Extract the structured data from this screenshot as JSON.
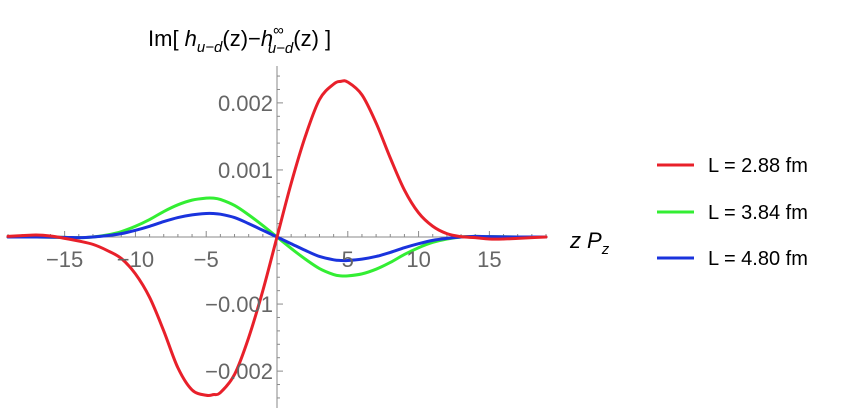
{
  "chart_data": {
    "type": "line",
    "title": {
      "prefix": "Im[ ",
      "h1": "h",
      "sub1": "u−d",
      "mid1": "(z)−",
      "h2": "h",
      "sup2": "∞",
      "sub2": "u−d",
      "mid2": "(z) ]"
    },
    "xlabel": {
      "z": "z",
      "P": "P",
      "sub": "z"
    },
    "xlim": [
      -19,
      19
    ],
    "ylim": [
      -0.00255,
      0.00255
    ],
    "x_ticks": [
      {
        "value": -15,
        "label": "−15"
      },
      {
        "value": -10,
        "label": "−10"
      },
      {
        "value": -5,
        "label": "−5"
      },
      {
        "value": 5,
        "label": "5"
      },
      {
        "value": 10,
        "label": "10"
      },
      {
        "value": 15,
        "label": "15"
      }
    ],
    "y_ticks": [
      {
        "value": 0.002,
        "label": "0.002"
      },
      {
        "value": 0.001,
        "label": "0.001"
      },
      {
        "value": -0.001,
        "label": "−0.001"
      },
      {
        "value": -0.002,
        "label": "−0.002"
      }
    ],
    "legend_position": "right",
    "series": [
      {
        "name": "L = 2.88 fm",
        "color": "#e8202a",
        "x": [
          -19,
          -18,
          -17,
          -16,
          -15,
          -14,
          -13,
          -12,
          -11,
          -10,
          -9,
          -8,
          -7,
          -6,
          -5,
          -4.5,
          -4,
          -3,
          -2,
          -1,
          0,
          1,
          2,
          3,
          4,
          4.5,
          5,
          6,
          7,
          8,
          9,
          10,
          11,
          12,
          13,
          14,
          15,
          16,
          17,
          18,
          19
        ],
        "values": [
          1e-05,
          2e-05,
          3e-05,
          1.5e-05,
          -2e-05,
          -6e-05,
          -0.00011,
          -0.0002,
          -0.00032,
          -0.00055,
          -0.0009,
          -0.0014,
          -0.00195,
          -0.00228,
          -0.00236,
          -0.00235,
          -0.00232,
          -0.00205,
          -0.0015,
          -0.0008,
          0,
          0.0008,
          0.0015,
          0.00205,
          0.00228,
          0.00232,
          0.00231,
          0.00212,
          0.0017,
          0.00118,
          0.0007,
          0.00036,
          0.00016,
          5e-05,
          5e-06,
          -1e-05,
          -3e-05,
          -3e-05,
          -2e-05,
          -1e-05,
          0
        ]
      },
      {
        "name": "L = 3.84 fm",
        "color": "#33ee33",
        "x": [
          -19,
          -17,
          -15,
          -14,
          -13,
          -12,
          -11,
          -10,
          -9,
          -8,
          -7,
          -6,
          -5,
          -4.5,
          -4,
          -3,
          -2,
          -1,
          0,
          1,
          2,
          3,
          4,
          4.5,
          5,
          6,
          7,
          8,
          9,
          10,
          11,
          12,
          13,
          14,
          15,
          17,
          19
        ],
        "values": [
          0,
          0,
          -5e-06,
          -1e-05,
          0,
          3e-05,
          8e-05,
          0.00016,
          0.00026,
          0.00038,
          0.00048,
          0.00055,
          0.00058,
          0.00058,
          0.00056,
          0.00047,
          0.00033,
          0.00017,
          0,
          -0.00017,
          -0.00033,
          -0.00047,
          -0.00056,
          -0.00058,
          -0.00058,
          -0.00055,
          -0.00048,
          -0.00038,
          -0.00026,
          -0.00016,
          -8e-05,
          -3e-05,
          0,
          1e-05,
          5e-06,
          0,
          0
        ]
      },
      {
        "name": "L = 4.80 fm",
        "color": "#1a33dd",
        "x": [
          -19,
          -17,
          -15,
          -14,
          -13,
          -12,
          -11,
          -10,
          -9,
          -8,
          -7,
          -6,
          -5,
          -4.5,
          -4,
          -3,
          -2,
          -1,
          0,
          1,
          2,
          3,
          4,
          4.5,
          5,
          6,
          7,
          8,
          9,
          10,
          11,
          12,
          13,
          14,
          15,
          17,
          19
        ],
        "values": [
          0,
          0,
          -5e-06,
          -1e-05,
          0,
          2e-05,
          5e-05,
          0.0001,
          0.00016,
          0.00023,
          0.00029,
          0.00033,
          0.00035,
          0.00035,
          0.00034,
          0.00029,
          0.0002,
          0.0001,
          0,
          -0.0001,
          -0.0002,
          -0.00029,
          -0.00034,
          -0.00035,
          -0.00035,
          -0.00033,
          -0.00029,
          -0.00023,
          -0.00016,
          -0.0001,
          -5e-05,
          -2e-05,
          0,
          1e-05,
          5e-06,
          0,
          0
        ]
      }
    ]
  }
}
